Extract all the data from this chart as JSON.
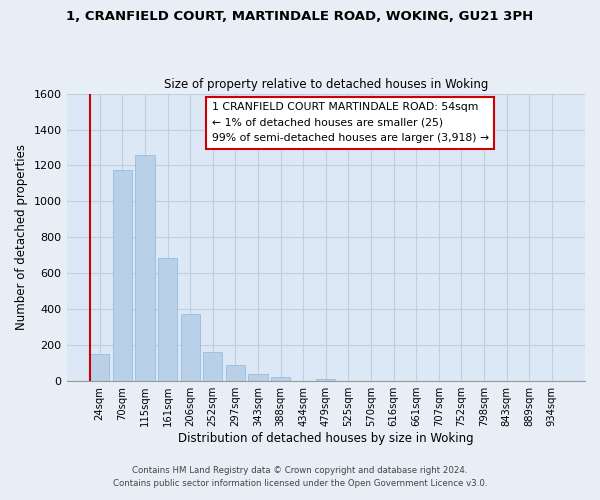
{
  "title": "1, CRANFIELD COURT, MARTINDALE ROAD, WOKING, GU21 3PH",
  "subtitle": "Size of property relative to detached houses in Woking",
  "xlabel": "Distribution of detached houses by size in Woking",
  "ylabel": "Number of detached properties",
  "bar_labels": [
    "24sqm",
    "70sqm",
    "115sqm",
    "161sqm",
    "206sqm",
    "252sqm",
    "297sqm",
    "343sqm",
    "388sqm",
    "434sqm",
    "479sqm",
    "525sqm",
    "570sqm",
    "616sqm",
    "661sqm",
    "707sqm",
    "752sqm",
    "798sqm",
    "843sqm",
    "889sqm",
    "934sqm"
  ],
  "bar_values": [
    150,
    1175,
    1260,
    685,
    375,
    160,
    92,
    38,
    22,
    0,
    10,
    0,
    0,
    0,
    0,
    0,
    0,
    0,
    0,
    0,
    0
  ],
  "highlight_bar_index": 0,
  "bar_color": "#b8d0e8",
  "highlight_bar_color": "#b8d0e8",
  "highlight_line_color": "#cc0000",
  "ylim": [
    0,
    1600
  ],
  "yticks": [
    0,
    200,
    400,
    600,
    800,
    1000,
    1200,
    1400,
    1600
  ],
  "annotation_box_text": "1 CRANFIELD COURT MARTINDALE ROAD: 54sqm\n← 1% of detached houses are smaller (25)\n99% of semi-detached houses are larger (3,918) →",
  "footer_line1": "Contains HM Land Registry data © Crown copyright and database right 2024.",
  "footer_line2": "Contains public sector information licensed under the Open Government Licence v3.0.",
  "background_color": "#e8eef5",
  "plot_background_color": "#dce8f5",
  "grid_color": "#c0cfe0"
}
